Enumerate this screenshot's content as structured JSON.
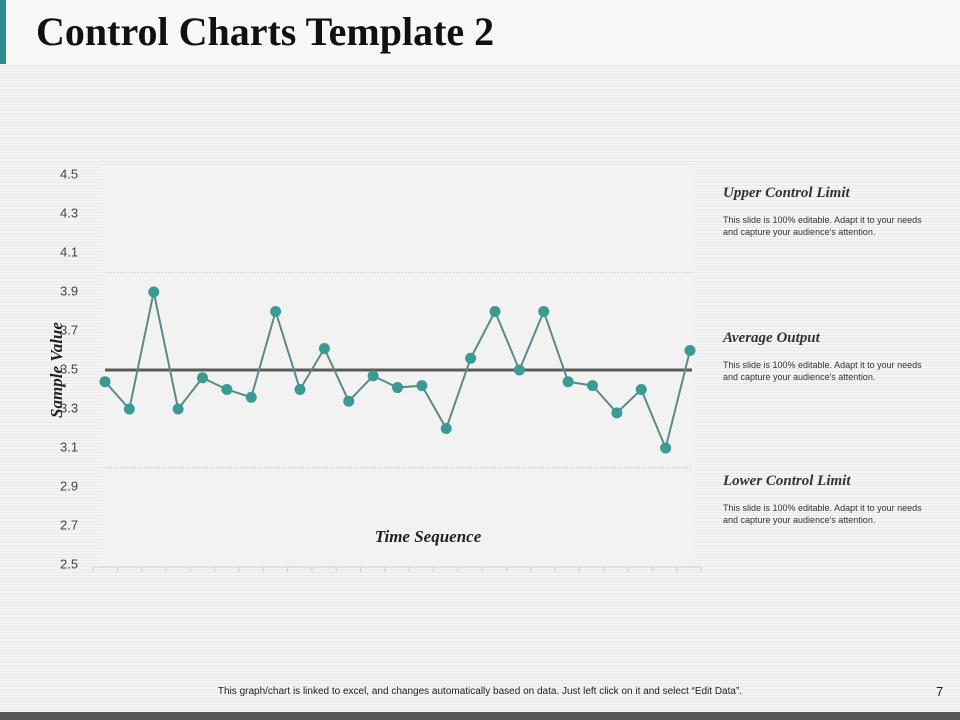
{
  "header": {
    "title": "Control Charts Template 2"
  },
  "chart_data": {
    "type": "line",
    "y_label": "Sample Value",
    "x_label": "Time Sequence",
    "categories": [
      null,
      null,
      null,
      null,
      null,
      null,
      null,
      null,
      null,
      null,
      null,
      null,
      null,
      null,
      null,
      null,
      null,
      null,
      null,
      null,
      null,
      null,
      null,
      null,
      null
    ],
    "series": [
      {
        "name": "Sample Value",
        "color": "#3a9a94",
        "line_color": "#5f8a84",
        "values": [
          3.44,
          3.3,
          3.9,
          3.3,
          3.46,
          3.4,
          3.36,
          3.8,
          3.4,
          3.61,
          3.34,
          3.47,
          3.41,
          3.42,
          3.2,
          3.56,
          3.8,
          3.5,
          3.8,
          3.44,
          3.42,
          3.28,
          3.4,
          3.1,
          3.6
        ]
      }
    ],
    "reference_lines": [
      {
        "name": "Upper Control Limit",
        "value": 4.0,
        "style": "dotted",
        "color": "#c8c8c8",
        "description": "This slide is 100% editable.  Adapt it to your needs and capture your audience's attention."
      },
      {
        "name": "Average Output",
        "value": 3.5,
        "style": "solid",
        "color": "#5a5a5a",
        "description": "This slide is 100% editable.  Adapt it to your needs and capture your audience's attention."
      },
      {
        "name": "Lower Control Limit",
        "value": 3.0,
        "style": "dotted",
        "color": "#c8c8c8",
        "description": "This slide is 100% editable.  Adapt it to your needs and capture your audience's attention."
      }
    ],
    "ylim": [
      2.5,
      4.5
    ],
    "yticks": [
      2.5,
      2.7,
      2.9,
      3.1,
      3.3,
      3.5,
      3.7,
      3.9,
      4.1,
      4.3,
      4.5
    ],
    "grid": false
  },
  "footer": {
    "note": "This graph/chart is linked to excel, and changes automatically based on data. Just left click on it and select “Edit Data”.",
    "page_number": "7"
  }
}
